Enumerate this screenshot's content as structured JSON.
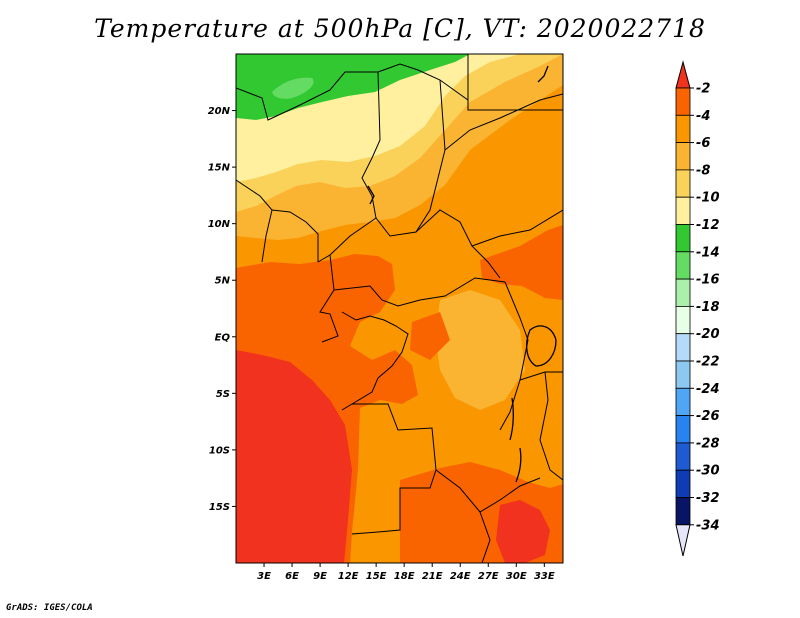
{
  "title": "Temperature at 500hPa [C], VT: 2020022718",
  "footer": "GrADS: IGES/COLA",
  "map": {
    "lon_range": [
      0,
      35
    ],
    "lat_range": [
      -20,
      25
    ],
    "lon_ticks": [
      {
        "value": 3,
        "label": "3E"
      },
      {
        "value": 6,
        "label": "6E"
      },
      {
        "value": 9,
        "label": "9E"
      },
      {
        "value": 12,
        "label": "12E"
      },
      {
        "value": 15,
        "label": "15E"
      },
      {
        "value": 18,
        "label": "18E"
      },
      {
        "value": 21,
        "label": "21E"
      },
      {
        "value": 24,
        "label": "24E"
      },
      {
        "value": 27,
        "label": "27E"
      },
      {
        "value": 30,
        "label": "30E"
      },
      {
        "value": 33,
        "label": "33E"
      }
    ],
    "lat_ticks": [
      {
        "value": 20,
        "label": "20N"
      },
      {
        "value": 15,
        "label": "15N"
      },
      {
        "value": 10,
        "label": "10N"
      },
      {
        "value": 5,
        "label": "5N"
      },
      {
        "value": 0,
        "label": "EQ"
      },
      {
        "value": -5,
        "label": "5S"
      },
      {
        "value": -10,
        "label": "10S"
      },
      {
        "value": -15,
        "label": "15S"
      }
    ]
  },
  "colorbar": {
    "labels": [
      "-2",
      "-4",
      "-6",
      "-8",
      "-10",
      "-12",
      "-14",
      "-16",
      "-18",
      "-20",
      "-22",
      "-24",
      "-26",
      "-28",
      "-30",
      "-32",
      "-34"
    ],
    "colors_top_to_bottom": [
      "#f0321e",
      "#fa6400",
      "#fa9600",
      "#fab432",
      "#fad25a",
      "#fff0a0",
      "#32c832",
      "#64dc64",
      "#aaf0aa",
      "#e6ffe6",
      "#b4dcfa",
      "#8cc8f0",
      "#50a5f5",
      "#2882f0",
      "#1e5ad2",
      "#0f3cb4",
      "#0a1464",
      "#e6e6fa"
    ]
  },
  "colors": {
    "c_ge_m2": "#f0321e",
    "c_m2_m4": "#fa6400",
    "c_m4_m6": "#fa9600",
    "c_m6_m8": "#fab432",
    "c_m8_m10": "#fad25a",
    "c_m10_m12": "#fff0a0",
    "c_m12_m14": "#32c832",
    "c_m14_m16": "#64dc64",
    "boundary": "#000000"
  }
}
